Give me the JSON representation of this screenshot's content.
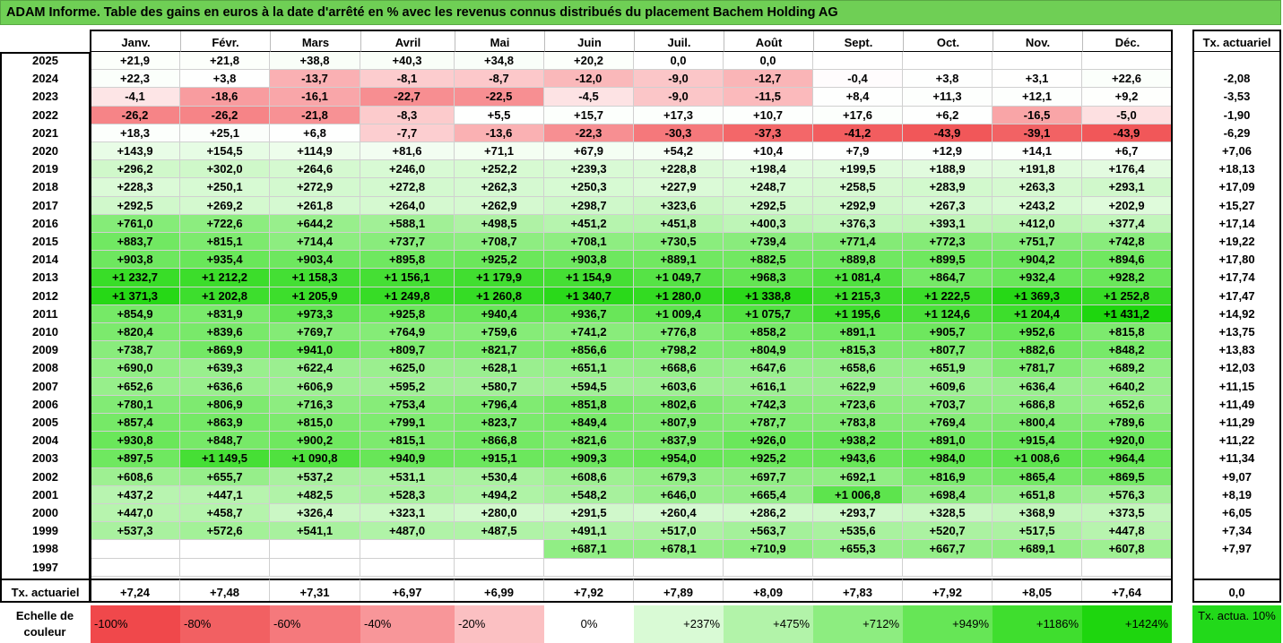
{
  "title": "ADAM Informe. Table des gains en euros à la date d'arrêté en % avec les revenus connus distribués du placement Bachem Holding AG",
  "chart_data": {
    "type": "table",
    "columns": [
      "Janv.",
      "Févr.",
      "Mars",
      "Avril",
      "Mai",
      "Juin",
      "Juil.",
      "Août",
      "Sept.",
      "Oct.",
      "Nov.",
      "Déc."
    ],
    "rate_header": "Tx. actuariel",
    "rows": [
      {
        "year": "2025",
        "values": [
          "+21,9",
          "+21,8",
          "+38,8",
          "+40,3",
          "+34,8",
          "+20,2",
          "0,0",
          "0,0",
          "",
          "",
          "",
          ""
        ],
        "rate": ""
      },
      {
        "year": "2024",
        "values": [
          "+22,3",
          "+3,8",
          "-13,7",
          "-8,1",
          "-8,7",
          "-12,0",
          "-9,0",
          "-12,7",
          "-0,4",
          "+3,8",
          "+3,1",
          "+22,6"
        ],
        "rate": "-2,08"
      },
      {
        "year": "2023",
        "values": [
          "-4,1",
          "-18,6",
          "-16,1",
          "-22,7",
          "-22,5",
          "-4,5",
          "-9,0",
          "-11,5",
          "+8,4",
          "+11,3",
          "+12,1",
          "+9,2"
        ],
        "rate": "-3,53"
      },
      {
        "year": "2022",
        "values": [
          "-26,2",
          "-26,2",
          "-21,8",
          "-8,3",
          "+5,5",
          "+15,7",
          "+17,3",
          "+10,7",
          "+17,6",
          "+6,2",
          "-16,5",
          "-5,0"
        ],
        "rate": "-1,90"
      },
      {
        "year": "2021",
        "values": [
          "+18,3",
          "+25,1",
          "+6,8",
          "-7,7",
          "-13,6",
          "-22,3",
          "-30,3",
          "-37,3",
          "-41,2",
          "-43,9",
          "-39,1",
          "-43,9"
        ],
        "rate": "-6,29"
      },
      {
        "year": "2020",
        "values": [
          "+143,9",
          "+154,5",
          "+114,9",
          "+81,6",
          "+71,1",
          "+67,9",
          "+54,2",
          "+10,4",
          "+7,9",
          "+12,9",
          "+14,1",
          "+6,7"
        ],
        "rate": "+7,06"
      },
      {
        "year": "2019",
        "values": [
          "+296,2",
          "+302,0",
          "+264,6",
          "+246,0",
          "+252,2",
          "+239,3",
          "+228,8",
          "+198,4",
          "+199,5",
          "+188,9",
          "+191,8",
          "+176,4"
        ],
        "rate": "+18,13"
      },
      {
        "year": "2018",
        "values": [
          "+228,3",
          "+250,1",
          "+272,9",
          "+272,8",
          "+262,3",
          "+250,3",
          "+227,9",
          "+248,7",
          "+258,5",
          "+283,9",
          "+263,3",
          "+293,1"
        ],
        "rate": "+17,09"
      },
      {
        "year": "2017",
        "values": [
          "+292,5",
          "+269,2",
          "+261,8",
          "+264,0",
          "+262,9",
          "+298,7",
          "+323,6",
          "+292,5",
          "+292,9",
          "+267,3",
          "+243,2",
          "+202,9"
        ],
        "rate": "+15,27"
      },
      {
        "year": "2016",
        "values": [
          "+761,0",
          "+722,6",
          "+644,2",
          "+588,1",
          "+498,5",
          "+451,2",
          "+451,8",
          "+400,3",
          "+376,3",
          "+393,1",
          "+412,0",
          "+377,4"
        ],
        "rate": "+17,14"
      },
      {
        "year": "2015",
        "values": [
          "+883,7",
          "+815,1",
          "+714,4",
          "+737,7",
          "+708,7",
          "+708,1",
          "+730,5",
          "+739,4",
          "+771,4",
          "+772,3",
          "+751,7",
          "+742,8"
        ],
        "rate": "+19,22"
      },
      {
        "year": "2014",
        "values": [
          "+903,8",
          "+935,4",
          "+903,4",
          "+895,8",
          "+925,2",
          "+903,8",
          "+889,1",
          "+882,5",
          "+889,8",
          "+899,5",
          "+904,2",
          "+894,6"
        ],
        "rate": "+17,80"
      },
      {
        "year": "2013",
        "values": [
          "+1 232,7",
          "+1 212,2",
          "+1 158,3",
          "+1 156,1",
          "+1 179,9",
          "+1 154,9",
          "+1 049,7",
          "+968,3",
          "+1 081,4",
          "+864,7",
          "+932,4",
          "+928,2"
        ],
        "rate": "+17,74"
      },
      {
        "year": "2012",
        "values": [
          "+1 371,3",
          "+1 202,8",
          "+1 205,9",
          "+1 249,8",
          "+1 260,8",
          "+1 340,7",
          "+1 280,0",
          "+1 338,8",
          "+1 215,3",
          "+1 222,5",
          "+1 369,3",
          "+1 252,8"
        ],
        "rate": "+17,47"
      },
      {
        "year": "2011",
        "values": [
          "+854,9",
          "+831,9",
          "+973,3",
          "+925,8",
          "+940,4",
          "+936,7",
          "+1 009,4",
          "+1 075,7",
          "+1 195,6",
          "+1 124,6",
          "+1 204,4",
          "+1 431,2"
        ],
        "rate": "+14,92"
      },
      {
        "year": "2010",
        "values": [
          "+820,4",
          "+839,6",
          "+769,7",
          "+764,9",
          "+759,6",
          "+741,2",
          "+776,8",
          "+858,2",
          "+891,1",
          "+905,7",
          "+952,6",
          "+815,8"
        ],
        "rate": "+13,75"
      },
      {
        "year": "2009",
        "values": [
          "+738,7",
          "+869,9",
          "+941,0",
          "+809,7",
          "+821,7",
          "+856,6",
          "+798,2",
          "+804,9",
          "+815,3",
          "+807,7",
          "+882,6",
          "+848,2"
        ],
        "rate": "+13,83"
      },
      {
        "year": "2008",
        "values": [
          "+690,0",
          "+639,3",
          "+622,4",
          "+625,0",
          "+628,1",
          "+651,1",
          "+668,6",
          "+647,6",
          "+658,6",
          "+651,9",
          "+781,7",
          "+689,2"
        ],
        "rate": "+12,03"
      },
      {
        "year": "2007",
        "values": [
          "+652,6",
          "+636,6",
          "+606,9",
          "+595,2",
          "+580,7",
          "+594,5",
          "+603,6",
          "+616,1",
          "+622,9",
          "+609,6",
          "+636,4",
          "+640,2"
        ],
        "rate": "+11,15"
      },
      {
        "year": "2006",
        "values": [
          "+780,1",
          "+806,9",
          "+716,3",
          "+753,4",
          "+796,4",
          "+851,8",
          "+802,6",
          "+742,3",
          "+723,6",
          "+703,7",
          "+686,8",
          "+652,6"
        ],
        "rate": "+11,49"
      },
      {
        "year": "2005",
        "values": [
          "+857,4",
          "+863,9",
          "+815,0",
          "+799,1",
          "+823,7",
          "+849,4",
          "+807,9",
          "+787,7",
          "+783,8",
          "+769,4",
          "+800,4",
          "+789,6"
        ],
        "rate": "+11,29"
      },
      {
        "year": "2004",
        "values": [
          "+930,8",
          "+848,7",
          "+900,2",
          "+815,1",
          "+866,8",
          "+821,6",
          "+837,9",
          "+926,0",
          "+938,2",
          "+891,0",
          "+915,4",
          "+920,0"
        ],
        "rate": "+11,22"
      },
      {
        "year": "2003",
        "values": [
          "+897,5",
          "+1 149,5",
          "+1 090,8",
          "+940,9",
          "+915,1",
          "+909,3",
          "+954,0",
          "+925,2",
          "+943,6",
          "+984,0",
          "+1 008,6",
          "+964,4"
        ],
        "rate": "+11,34"
      },
      {
        "year": "2002",
        "values": [
          "+608,6",
          "+655,7",
          "+537,2",
          "+531,1",
          "+530,4",
          "+608,6",
          "+679,3",
          "+697,7",
          "+692,1",
          "+816,9",
          "+865,4",
          "+869,5"
        ],
        "rate": "+9,07"
      },
      {
        "year": "2001",
        "values": [
          "+437,2",
          "+447,1",
          "+482,5",
          "+528,3",
          "+494,2",
          "+548,2",
          "+646,0",
          "+665,4",
          "+1 006,8",
          "+698,4",
          "+651,8",
          "+576,3"
        ],
        "rate": "+8,19"
      },
      {
        "year": "2000",
        "values": [
          "+447,0",
          "+458,7",
          "+326,4",
          "+323,1",
          "+280,0",
          "+291,5",
          "+260,4",
          "+286,2",
          "+293,7",
          "+328,5",
          "+368,9",
          "+373,5"
        ],
        "rate": "+6,05"
      },
      {
        "year": "1999",
        "values": [
          "+537,3",
          "+572,6",
          "+541,1",
          "+487,0",
          "+487,5",
          "+491,1",
          "+517,0",
          "+563,7",
          "+535,6",
          "+520,7",
          "+517,5",
          "+447,8"
        ],
        "rate": "+7,34"
      },
      {
        "year": "1998",
        "values": [
          "",
          "",
          "",
          "",
          "",
          "+687,1",
          "+678,1",
          "+710,9",
          "+655,3",
          "+667,7",
          "+689,1",
          "+607,8"
        ],
        "rate": "+7,97"
      },
      {
        "year": "1997",
        "values": [
          "",
          "",
          "",
          "",
          "",
          "",
          "",
          "",
          "",
          "",
          "",
          ""
        ],
        "rate": ""
      }
    ],
    "footer": {
      "label": "Tx. actuariel",
      "values": [
        "+7,24",
        "+7,48",
        "+7,31",
        "+6,97",
        "+6,99",
        "+7,92",
        "+7,89",
        "+8,09",
        "+7,83",
        "+7,92",
        "+8,05",
        "+7,64"
      ],
      "rate": "0,0"
    },
    "color_scale": {
      "label": "Echelle de couleur",
      "steps": [
        {
          "text": "-100%",
          "color": "#f0484b"
        },
        {
          "text": "-80%",
          "color": "#f26062"
        },
        {
          "text": "-60%",
          "color": "#f5797c"
        },
        {
          "text": "-40%",
          "color": "#f89699"
        },
        {
          "text": "-20%",
          "color": "#fbc0c2"
        },
        {
          "text": "0%",
          "color": "#ffffff"
        },
        {
          "text": "+237%",
          "color": "#d9fad5"
        },
        {
          "text": "+475%",
          "color": "#b2f3a9"
        },
        {
          "text": "+712%",
          "color": "#8ded80"
        },
        {
          "text": "+949%",
          "color": "#66e656"
        },
        {
          "text": "+1186%",
          "color": "#3fde2e"
        },
        {
          "text": "+1424%",
          "color": "#1ed60e"
        }
      ],
      "rate_box": {
        "text": "Tx. actua. 10%",
        "color": "#22d91a"
      }
    }
  }
}
